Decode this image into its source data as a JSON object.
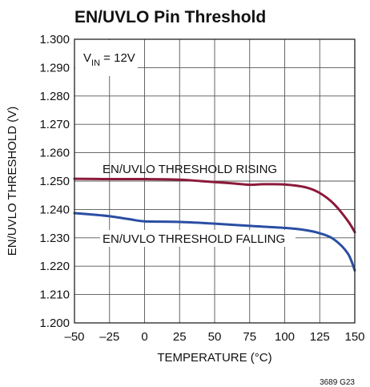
{
  "chart_data": {
    "type": "line",
    "title": "EN/UVLO Pin Threshold",
    "xlabel": "TEMPERATURE (°C)",
    "ylabel": "EN/UVLO THRESHOLD (V)",
    "xlim": [
      -50,
      150
    ],
    "ylim": [
      1.2,
      1.3
    ],
    "xticks": [
      -50,
      -25,
      0,
      25,
      50,
      75,
      100,
      125,
      150
    ],
    "xtick_labels": [
      "–50",
      "–25",
      "0",
      "25",
      "50",
      "75",
      "100",
      "125",
      "150"
    ],
    "yticks": [
      1.2,
      1.21,
      1.22,
      1.23,
      1.24,
      1.25,
      1.26,
      1.27,
      1.28,
      1.29,
      1.3
    ],
    "ytick_labels": [
      "1.200",
      "1.210",
      "1.220",
      "1.230",
      "1.240",
      "1.250",
      "1.260",
      "1.270",
      "1.280",
      "1.290",
      "1.300"
    ],
    "grid": true,
    "condition": {
      "main": "V",
      "sub": "IN",
      "rest": " = 12V"
    },
    "series": [
      {
        "name": "EN/UVLO THRESHOLD RISING",
        "color": "#8b1a3a",
        "x": [
          -50,
          -25,
          0,
          25,
          40,
          60,
          75,
          85,
          100,
          115,
          125,
          135,
          145,
          150
        ],
        "y": [
          1.2508,
          1.2507,
          1.2507,
          1.2505,
          1.25,
          1.2493,
          1.2487,
          1.2489,
          1.2488,
          1.2478,
          1.2458,
          1.242,
          1.236,
          1.232
        ]
      },
      {
        "name": "EN/UVLO THRESHOLD FALLING",
        "color": "#2b4ea3",
        "x": [
          -50,
          -35,
          -25,
          -10,
          0,
          25,
          50,
          75,
          100,
          115,
          125,
          135,
          145,
          150
        ],
        "y": [
          1.2387,
          1.2381,
          1.2376,
          1.2365,
          1.2358,
          1.2356,
          1.235,
          1.2342,
          1.2335,
          1.2327,
          1.2316,
          1.2295,
          1.2245,
          1.2185
        ]
      }
    ],
    "figure_code": "3689 G23"
  }
}
